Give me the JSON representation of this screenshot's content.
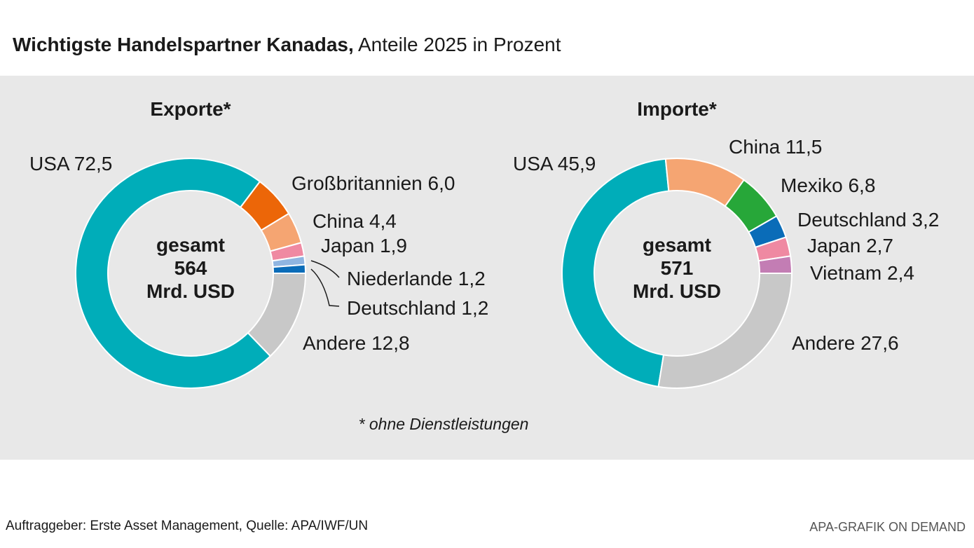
{
  "header": {
    "title_bold": "Wichtigste Handelspartner Kanadas,",
    "title_rest": "Anteile 2025 in Prozent"
  },
  "footnote": "* ohne Dienstleistungen",
  "source": "Auftraggeber: Erste Asset Management, Quelle: APA/IWF/UN",
  "credit": "APA-GRAFIK ON DEMAND",
  "chart_data": [
    {
      "type": "pie",
      "title": "Exporte*",
      "center_lines": [
        "gesamt",
        "564",
        "Mrd. USD"
      ],
      "slices": [
        {
          "label": "USA 72,5",
          "name": "USA",
          "value": 72.5,
          "color": "#00adb9"
        },
        {
          "label": "Großbritannien 6,0",
          "name": "Großbritannien",
          "value": 6.0,
          "color": "#ec6608"
        },
        {
          "label": "China 4,4",
          "name": "China",
          "value": 4.4,
          "color": "#f5a572"
        },
        {
          "label": "Japan 1,9",
          "name": "Japan",
          "value": 1.9,
          "color": "#ef89a2"
        },
        {
          "label": "Niederlande 1,2",
          "name": "Niederlande",
          "value": 1.2,
          "color": "#8fb5e1"
        },
        {
          "label": "Deutschland 1,2",
          "name": "Deutschland",
          "value": 1.2,
          "color": "#0a6cb8"
        },
        {
          "label": "Andere 12,8",
          "name": "Andere",
          "value": 12.8,
          "color": "#c8c8c8"
        }
      ]
    },
    {
      "type": "pie",
      "title": "Importe*",
      "center_lines": [
        "gesamt",
        "571",
        "Mrd. USD"
      ],
      "slices": [
        {
          "label": "USA 45,9",
          "name": "USA",
          "value": 45.9,
          "color": "#00adb9"
        },
        {
          "label": "China 11,5",
          "name": "China",
          "value": 11.5,
          "color": "#f5a572"
        },
        {
          "label": "Mexiko 6,8",
          "name": "Mexiko",
          "value": 6.8,
          "color": "#27a739"
        },
        {
          "label": "Deutschland 3,2",
          "name": "Deutschland",
          "value": 3.2,
          "color": "#0a6cb8"
        },
        {
          "label": "Japan 2,7",
          "name": "Japan",
          "value": 2.7,
          "color": "#ef89a2"
        },
        {
          "label": "Vietnam 2,4",
          "name": "Vietnam",
          "value": 2.4,
          "color": "#c37db4"
        },
        {
          "label": "Andere 27,6",
          "name": "Andere",
          "value": 27.6,
          "color": "#c8c8c8"
        }
      ]
    }
  ]
}
